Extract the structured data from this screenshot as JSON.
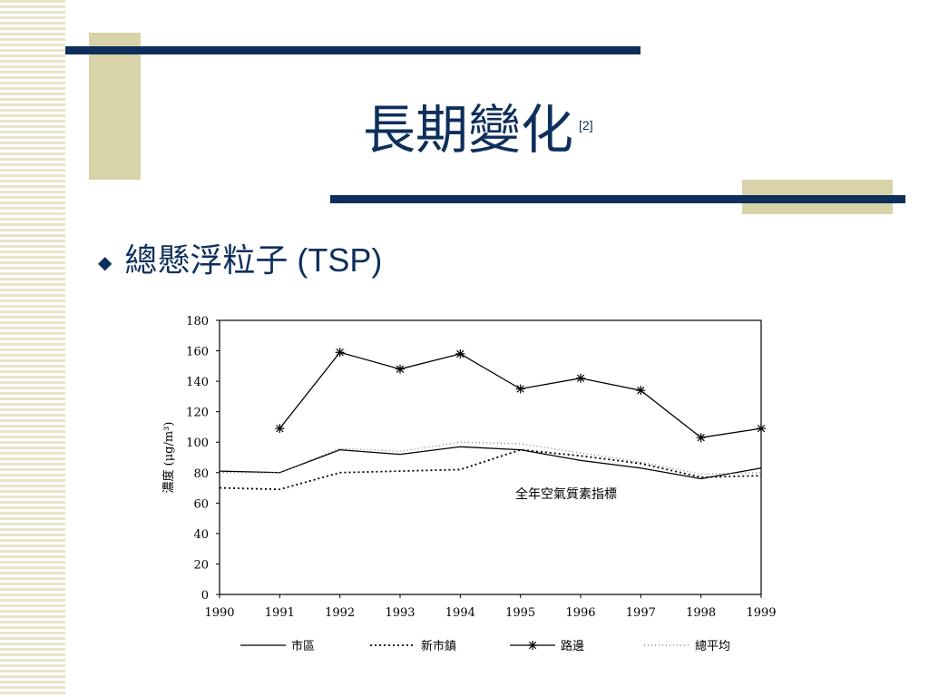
{
  "slide": {
    "title": "長期變化",
    "title_ref": "[2]",
    "bullet_marker": "◆",
    "bullet_text": "總懸浮粒子 (TSP)"
  },
  "theme": {
    "navy": "#0e2f5c",
    "tan": "#d8d3a8"
  },
  "chart_data": {
    "type": "line",
    "ylabel": "濃度 (μg/m³)",
    "ylim": [
      0,
      180
    ],
    "yticks": [
      0,
      20,
      40,
      60,
      80,
      100,
      120,
      140,
      160,
      180
    ],
    "x": [
      1990,
      1991,
      1992,
      1993,
      1994,
      1995,
      1996,
      1997,
      1998,
      1999
    ],
    "annotation": "全年空氣質素指標",
    "series": [
      {
        "name": "市區",
        "style": "solid",
        "values": [
          81,
          80,
          95,
          92,
          97,
          95,
          88,
          83,
          76,
          83
        ]
      },
      {
        "name": "新市鎮",
        "style": "dotted",
        "values": [
          70,
          69,
          80,
          81,
          82,
          95,
          91,
          86,
          77,
          78
        ]
      },
      {
        "name": "路邊",
        "style": "solid-star",
        "values": [
          null,
          109,
          159,
          148,
          158,
          135,
          142,
          134,
          103,
          109
        ]
      },
      {
        "name": "總平均",
        "style": "light-dotted",
        "values": [
          80,
          80,
          96,
          94,
          100,
          99,
          93,
          87,
          79,
          80
        ]
      }
    ]
  }
}
